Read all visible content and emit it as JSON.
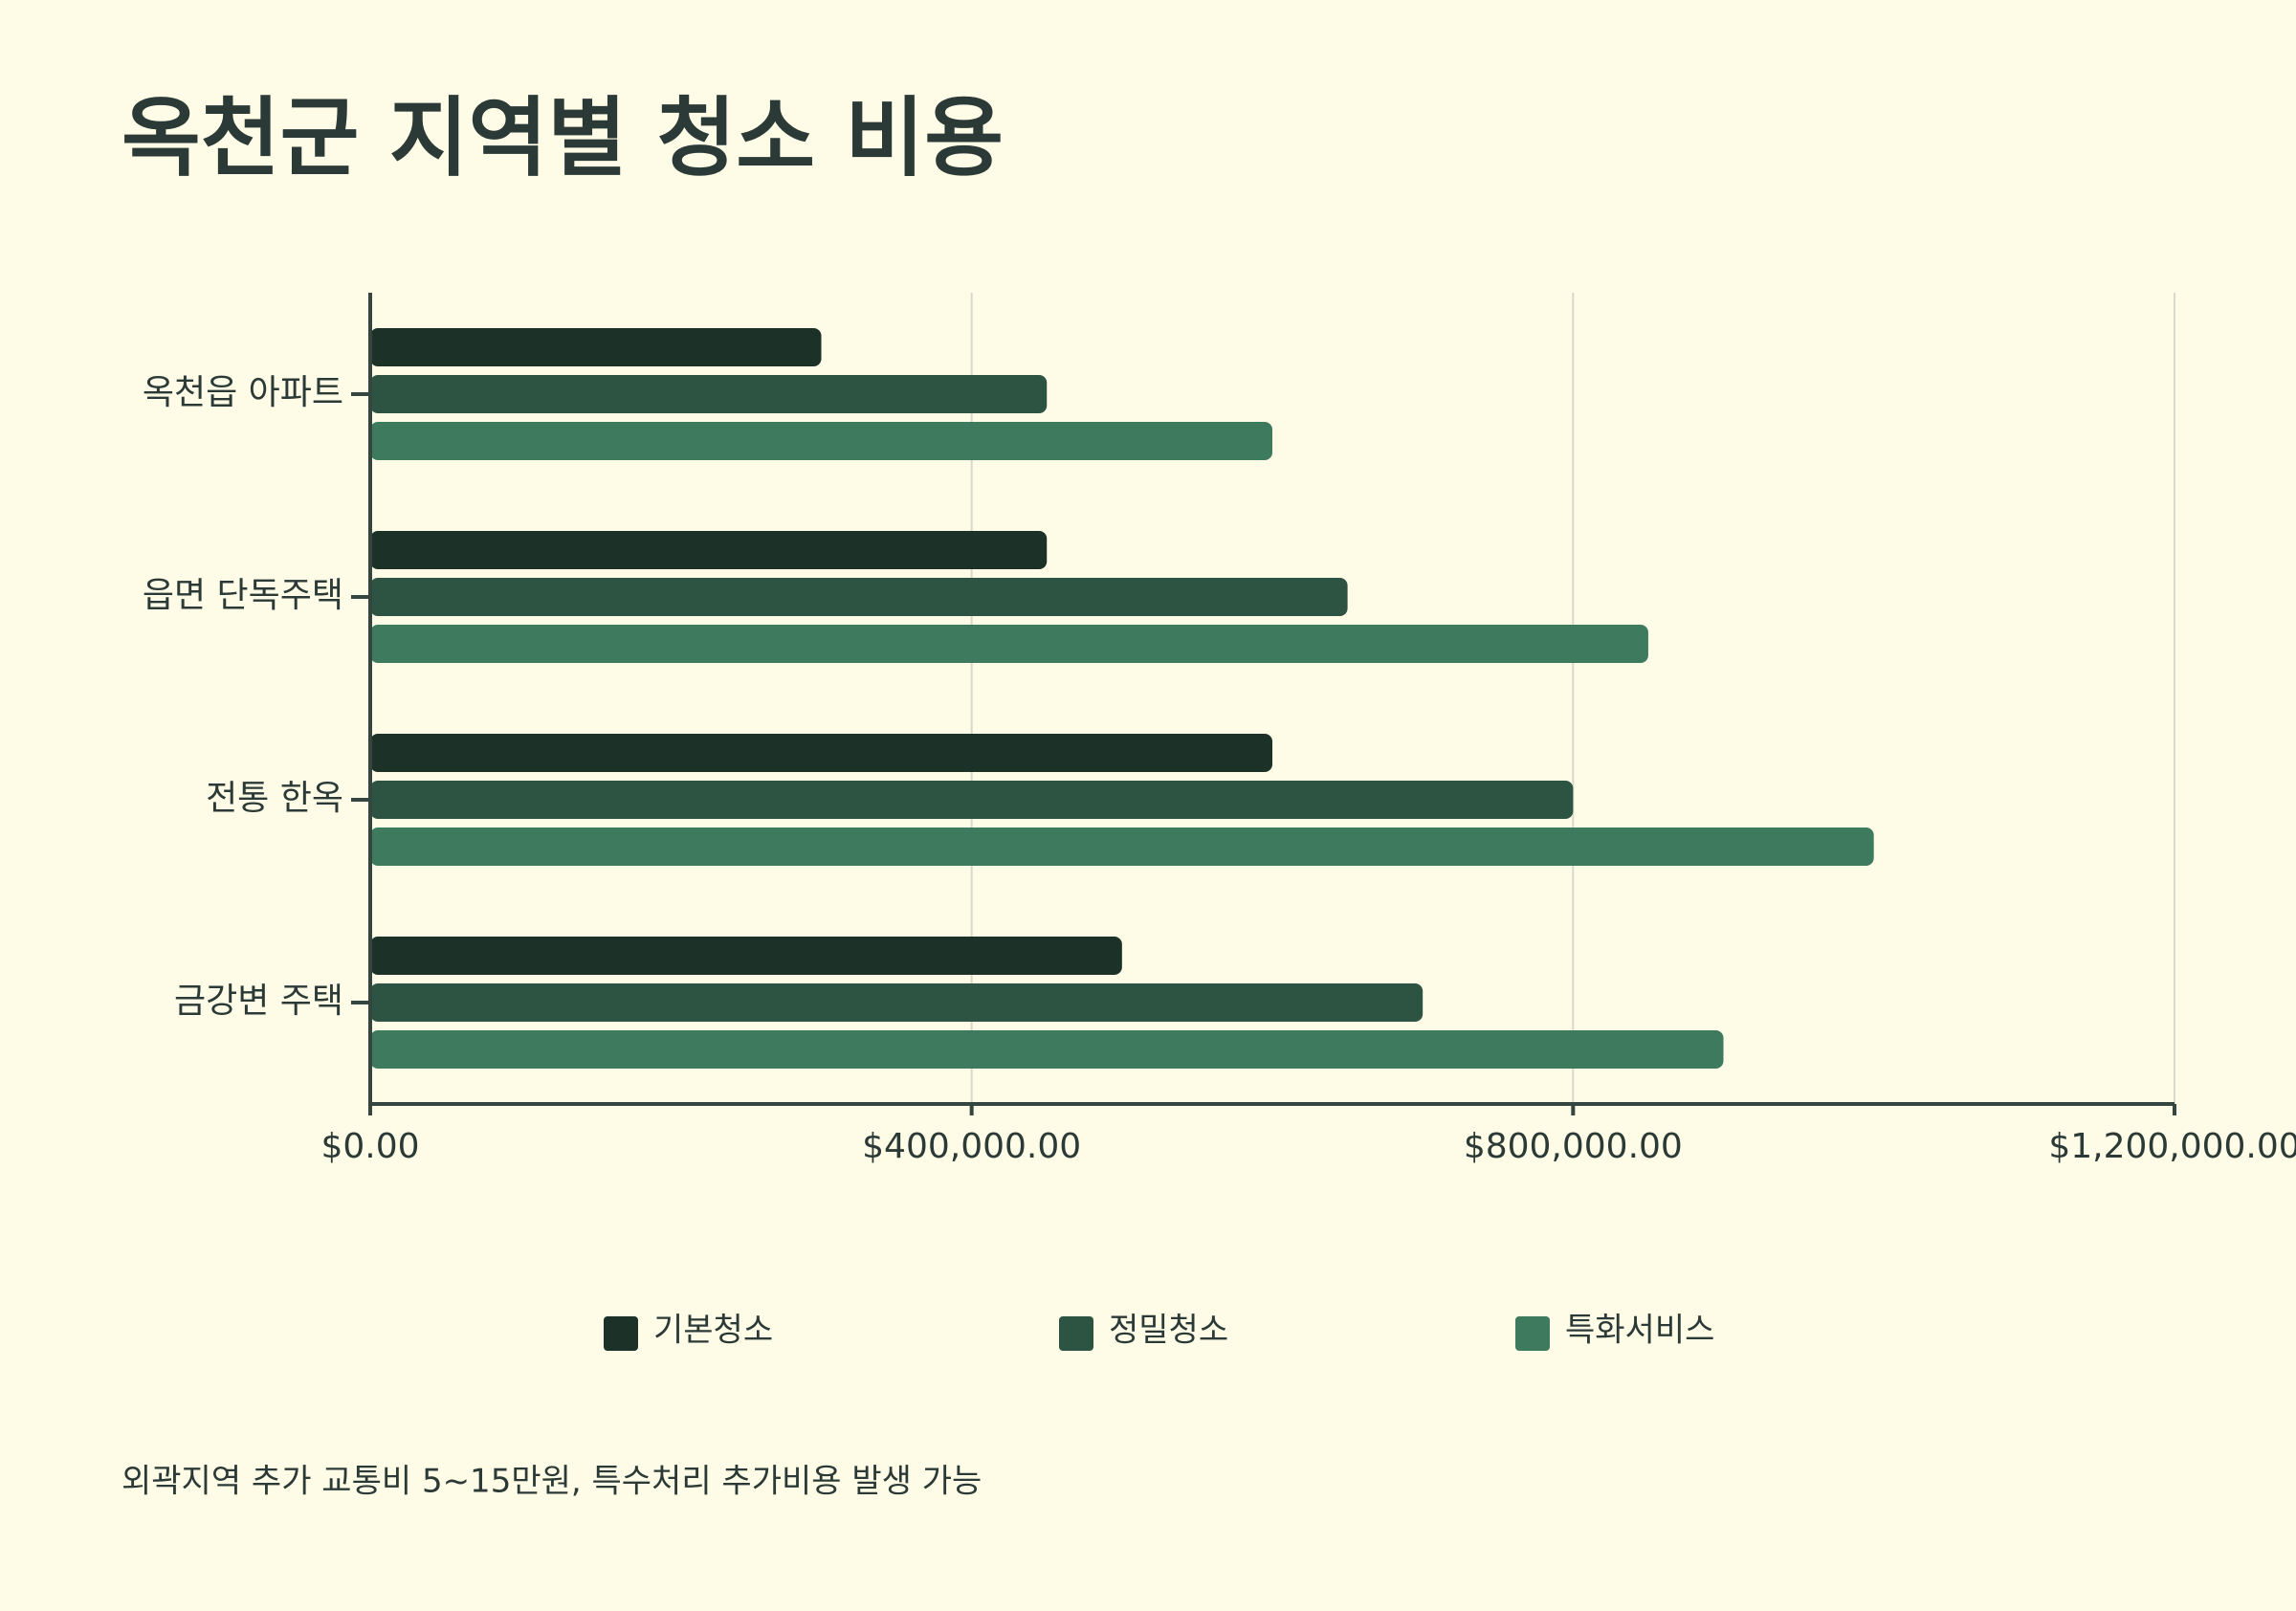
{
  "chart_data": {
    "type": "hbar",
    "title": "옥천군 지역별 청소 비용",
    "categories": [
      "옥천읍 아파트",
      "읍면 단독주택",
      "전통 한옥",
      "금강변 주택"
    ],
    "series": [
      {
        "name": "기본청소",
        "color": "#1c3128",
        "values": [
          300000,
          450000,
          600000,
          500000
        ]
      },
      {
        "name": "정밀청소",
        "color": "#2d5443",
        "values": [
          450000,
          650000,
          800000,
          700000
        ]
      },
      {
        "name": "특화서비스",
        "color": "#3d7a5e",
        "values": [
          600000,
          850000,
          1000000,
          900000
        ]
      }
    ],
    "xlim": [
      0,
      1200000
    ],
    "xticks": [
      {
        "value": 0,
        "label": "$0.00"
      },
      {
        "value": 400000,
        "label": "$400,000.00"
      },
      {
        "value": 800000,
        "label": "$800,000.00"
      },
      {
        "value": 1200000,
        "label": "$1,200,000.00"
      }
    ],
    "grid": true,
    "legend": "bottom",
    "annotation": "외곽지역 추가 교통비 5~15만원, 특수처리 추가비용 발생 가능"
  }
}
